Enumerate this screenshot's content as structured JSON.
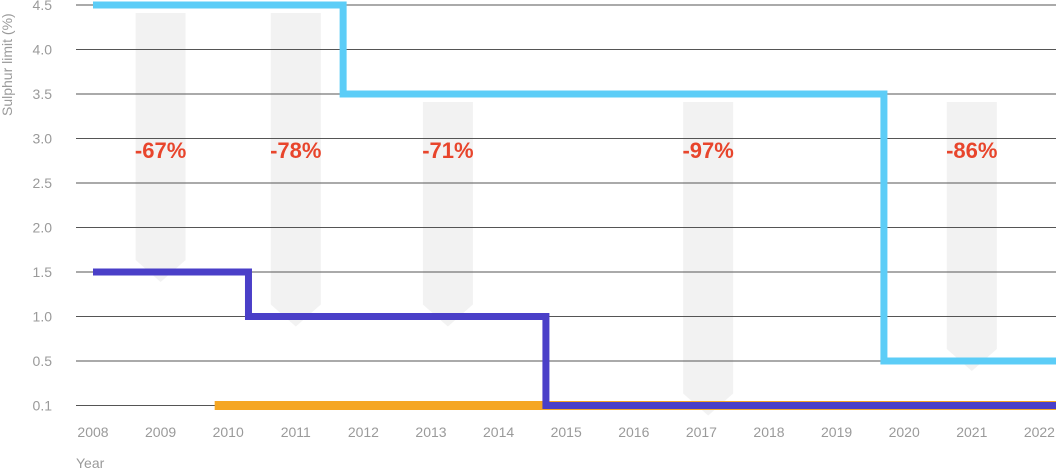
{
  "chart_data": {
    "type": "line",
    "title": "",
    "xlabel": "Year",
    "ylabel": "Sulphur limit (%)",
    "y_ticks": [
      "4.5",
      "4.0",
      "3.5",
      "3.0",
      "2.5",
      "2.0",
      "1.5",
      "1.0",
      "0.5",
      "0.1"
    ],
    "x_ticks": [
      "2008",
      "2009",
      "2010",
      "2011",
      "2012",
      "2013",
      "2014",
      "2015",
      "2016",
      "2017",
      "2018",
      "2019",
      "2020",
      "2021",
      "2022"
    ],
    "grid": true,
    "step_chart": true,
    "series": [
      {
        "color": "#5ccdf7",
        "steps": [
          {
            "year": 2008,
            "value": 4.5
          },
          {
            "year": 2011.7,
            "value": 3.5
          },
          {
            "year": 2019.7,
            "value": 0.5
          },
          {
            "year": 2022.3,
            "value": 0.5
          }
        ]
      },
      {
        "color": "#4a3fc8",
        "steps": [
          {
            "year": 2008,
            "value": 1.5
          },
          {
            "year": 2010.3,
            "value": 1.0
          },
          {
            "year": 2014.7,
            "value": 0.1
          },
          {
            "year": 2022.3,
            "value": 0.1
          }
        ]
      },
      {
        "color": "#f5a623",
        "steps": [
          {
            "year": 2009.8,
            "value": 0.1
          },
          {
            "year": 2022.3,
            "value": 0.1
          }
        ]
      }
    ],
    "annotations": [
      {
        "label": "-67%",
        "year": 2009,
        "arrow_from": 4.5,
        "arrow_to": 1.5
      },
      {
        "label": "-78%",
        "year": 2011,
        "arrow_from": 4.5,
        "arrow_to": 1.0
      },
      {
        "label": "-71%",
        "year": 2013.25,
        "arrow_from": 3.5,
        "arrow_to": 1.0
      },
      {
        "label": "-97%",
        "year": 2017.1,
        "arrow_from": 3.5,
        "arrow_to": 0.1
      },
      {
        "label": "-86%",
        "year": 2021,
        "arrow_from": 3.5,
        "arrow_to": 0.5
      }
    ],
    "annotation_color": "#e8452c",
    "arrow_color": "#f2f2f2",
    "grid_color": "#555555"
  }
}
